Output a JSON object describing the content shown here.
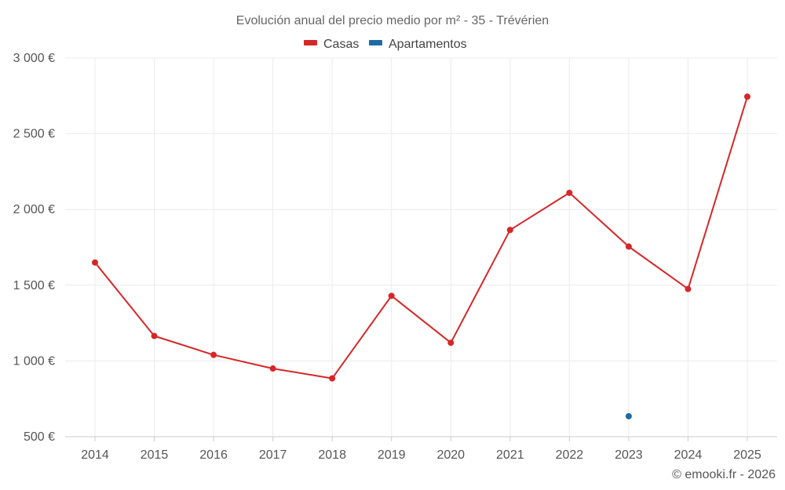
{
  "chart_data": {
    "type": "line",
    "title": "Evolución anual del precio medio por m² - 35 - Trévérien",
    "categories": [
      "2014",
      "2015",
      "2016",
      "2017",
      "2018",
      "2019",
      "2020",
      "2021",
      "2022",
      "2023",
      "2024",
      "2025"
    ],
    "series": [
      {
        "name": "Casas",
        "color": "#d62728",
        "values": [
          1650,
          1165,
          1040,
          950,
          885,
          1430,
          1120,
          1865,
          2110,
          1755,
          1475,
          2745
        ]
      },
      {
        "name": "Apartamentos",
        "color": "#1f6aa5",
        "values": [
          null,
          null,
          null,
          null,
          null,
          null,
          null,
          null,
          null,
          635,
          null,
          null
        ]
      }
    ],
    "y_ticks": [
      500,
      1000,
      1500,
      2000,
      2500,
      3000
    ],
    "y_tick_labels": [
      "500 €",
      "1 000 €",
      "1 500 €",
      "2 000 €",
      "2 500 €",
      "3 000 €"
    ],
    "ylim": [
      500,
      3000
    ],
    "xlabel": "",
    "ylabel": "",
    "legend_position": "top-center",
    "grid": true
  },
  "credit": "© emooki.fr - 2026"
}
